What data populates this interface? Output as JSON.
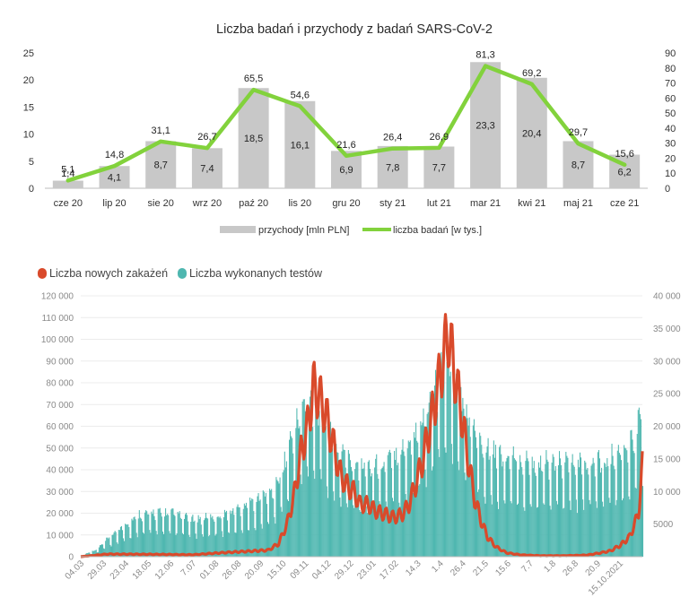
{
  "chart_data": [
    {
      "type": "bar",
      "title": "Liczba badań i przychody z badań SARS-CoV-2",
      "categories": [
        "cze 20",
        "lip 20",
        "sie 20",
        "wrz 20",
        "paź 20",
        "lis 20",
        "gru 20",
        "sty 21",
        "lut 21",
        "mar 21",
        "kwi 21",
        "maj 21",
        "cze 21"
      ],
      "series": [
        {
          "name": "przychody [mln PLN]",
          "type": "bar",
          "axis": "left",
          "values": [
            1.4,
            4.1,
            8.7,
            7.4,
            18.5,
            16.1,
            6.9,
            7.8,
            7.7,
            23.3,
            20.4,
            8.7,
            6.2
          ],
          "labels": [
            "1,4",
            "4,1",
            "8,7",
            "7,4",
            "18,5",
            "16,1",
            "6,9",
            "7,8",
            "7,7",
            "23,3",
            "20,4",
            "8,7",
            "6,2"
          ]
        },
        {
          "name": "liczba badań [w tys.]",
          "type": "line",
          "axis": "right",
          "values": [
            5.1,
            14.8,
            31.1,
            26.7,
            65.5,
            54.6,
            21.6,
            26.4,
            26.9,
            81.3,
            69.2,
            29.7,
            15.6
          ],
          "labels": [
            "5,1",
            "14,8",
            "31,1",
            "26,7",
            "65,5",
            "54,6",
            "21,6",
            "26,4",
            "26,9",
            "81,3",
            "69,2",
            "29,7",
            "15,6"
          ]
        }
      ],
      "ylim": [
        0,
        25
      ],
      "y2lim": [
        0,
        90
      ],
      "yticks": [
        "0",
        "5",
        "10",
        "15",
        "20",
        "25"
      ],
      "y2ticks": [
        "0",
        "10",
        "20",
        "30",
        "40",
        "50",
        "60",
        "70",
        "80",
        "90"
      ],
      "legend_position": "bottom",
      "colors": {
        "bar": "#c8c8c8",
        "line": "#82d23c"
      }
    },
    {
      "type": "area",
      "title": "",
      "x_start": "2020-03-04",
      "x_end": "2021-10-24",
      "xtick_labels": [
        "04.03",
        "29.03",
        "23.04",
        "18.05",
        "12.06",
        "7.07",
        "01.08",
        "26.08",
        "20.09",
        "15.10",
        "09.11",
        "04.12",
        "29.12",
        "23.01",
        "17.02",
        "14.3",
        "1.4",
        "26.4",
        "21.5",
        "15.6",
        "7.7",
        "1.8",
        "26.8",
        "20.9",
        "15.10.2021"
      ],
      "series": [
        {
          "name": "Liczba nowych zakażeń",
          "axis": "right",
          "color": "#d94a2b",
          "keypoints": [
            [
              "2020-03-04",
              0
            ],
            [
              "2020-04-01",
              400
            ],
            [
              "2020-05-01",
              380
            ],
            [
              "2020-06-01",
              350
            ],
            [
              "2020-07-01",
              300
            ],
            [
              "2020-08-01",
              600
            ],
            [
              "2020-08-26",
              800
            ],
            [
              "2020-09-20",
              1000
            ],
            [
              "2020-10-01",
              2000
            ],
            [
              "2020-10-10",
              5000
            ],
            [
              "2020-10-17",
              9000
            ],
            [
              "2020-10-25",
              16000
            ],
            [
              "2020-11-01",
              20000
            ],
            [
              "2020-11-07",
              26000
            ],
            [
              "2020-11-12",
              25000
            ],
            [
              "2020-11-20",
              22000
            ],
            [
              "2020-11-27",
              18000
            ],
            [
              "2020-12-05",
              13000
            ],
            [
              "2020-12-12",
              11000
            ],
            [
              "2020-12-20",
              10000
            ],
            [
              "2020-12-27",
              8000
            ],
            [
              "2021-01-05",
              8000
            ],
            [
              "2021-01-12",
              7000
            ],
            [
              "2021-01-23",
              6500
            ],
            [
              "2021-02-01",
              6000
            ],
            [
              "2021-02-10",
              6500
            ],
            [
              "2021-02-17",
              8000
            ],
            [
              "2021-02-24",
              11000
            ],
            [
              "2021-03-03",
              14500
            ],
            [
              "2021-03-10",
              19000
            ],
            [
              "2021-03-17",
              24000
            ],
            [
              "2021-03-24",
              29000
            ],
            [
              "2021-03-31",
              34500
            ],
            [
              "2021-04-07",
              28000
            ],
            [
              "2021-04-14",
              22000
            ],
            [
              "2021-04-21",
              15000
            ],
            [
              "2021-04-28",
              9000
            ],
            [
              "2021-05-05",
              5500
            ],
            [
              "2021-05-12",
              3000
            ],
            [
              "2021-05-21",
              1500
            ],
            [
              "2021-06-01",
              600
            ],
            [
              "2021-06-15",
              300
            ],
            [
              "2021-07-07",
              150
            ],
            [
              "2021-08-01",
              150
            ],
            [
              "2021-08-26",
              250
            ],
            [
              "2021-09-10",
              600
            ],
            [
              "2021-09-20",
              900
            ],
            [
              "2021-10-01",
              1800
            ],
            [
              "2021-10-10",
              3000
            ],
            [
              "2021-10-16",
              5000
            ],
            [
              "2021-10-20",
              7000
            ],
            [
              "2021-10-22",
              10000
            ],
            [
              "2021-10-24",
              14000
            ]
          ]
        },
        {
          "name": "Liczba wykonanych testów",
          "axis": "left",
          "color": "#4fb7b0",
          "keypoints": [
            [
              "2020-03-04",
              500
            ],
            [
              "2020-03-20",
              3000
            ],
            [
              "2020-04-05",
              9000
            ],
            [
              "2020-04-20",
              14000
            ],
            [
              "2020-05-05",
              18000
            ],
            [
              "2020-05-20",
              19000
            ],
            [
              "2020-06-10",
              18500
            ],
            [
              "2020-07-01",
              16000
            ],
            [
              "2020-07-20",
              17000
            ],
            [
              "2020-08-10",
              19000
            ],
            [
              "2020-08-26",
              22000
            ],
            [
              "2020-09-10",
              25000
            ],
            [
              "2020-09-25",
              28000
            ],
            [
              "2020-10-05",
              38000
            ],
            [
              "2020-10-15",
              52000
            ],
            [
              "2020-10-25",
              62000
            ],
            [
              "2020-11-02",
              68000
            ],
            [
              "2020-11-09",
              66000
            ],
            [
              "2020-11-20",
              56000
            ],
            [
              "2020-12-01",
              46000
            ],
            [
              "2020-12-15",
              42000
            ],
            [
              "2021-01-01",
              38000
            ],
            [
              "2021-01-20",
              40000
            ],
            [
              "2021-02-10",
              46000
            ],
            [
              "2021-02-25",
              54000
            ],
            [
              "2021-03-10",
              66000
            ],
            [
              "2021-03-25",
              80000
            ],
            [
              "2021-04-01",
              84000
            ],
            [
              "2021-04-10",
              72000
            ],
            [
              "2021-04-20",
              60000
            ],
            [
              "2021-05-01",
              52000
            ],
            [
              "2021-05-15",
              46000
            ],
            [
              "2021-06-01",
              42000
            ],
            [
              "2021-07-01",
              40000
            ],
            [
              "2021-08-01",
              40000
            ],
            [
              "2021-09-01",
              40000
            ],
            [
              "2021-09-20",
              42000
            ],
            [
              "2021-10-05",
              46000
            ],
            [
              "2021-10-15",
              52000
            ],
            [
              "2021-10-24",
              62000
            ]
          ]
        }
      ],
      "ylim": [
        0,
        120000
      ],
      "y2lim": [
        0,
        40000
      ],
      "yticks": [
        "0",
        "10 000",
        "20 000",
        "30 000",
        "40 000",
        "50 000",
        "60 000",
        "70 000",
        "80 000",
        "90 000",
        "100 000",
        "110 000",
        "120 000"
      ],
      "y2ticks": [
        "5000",
        "10 000",
        "15 000",
        "20 000",
        "25 000",
        "30 000",
        "35 000",
        "40 000"
      ],
      "legend_position": "top-left",
      "grid": true
    }
  ]
}
